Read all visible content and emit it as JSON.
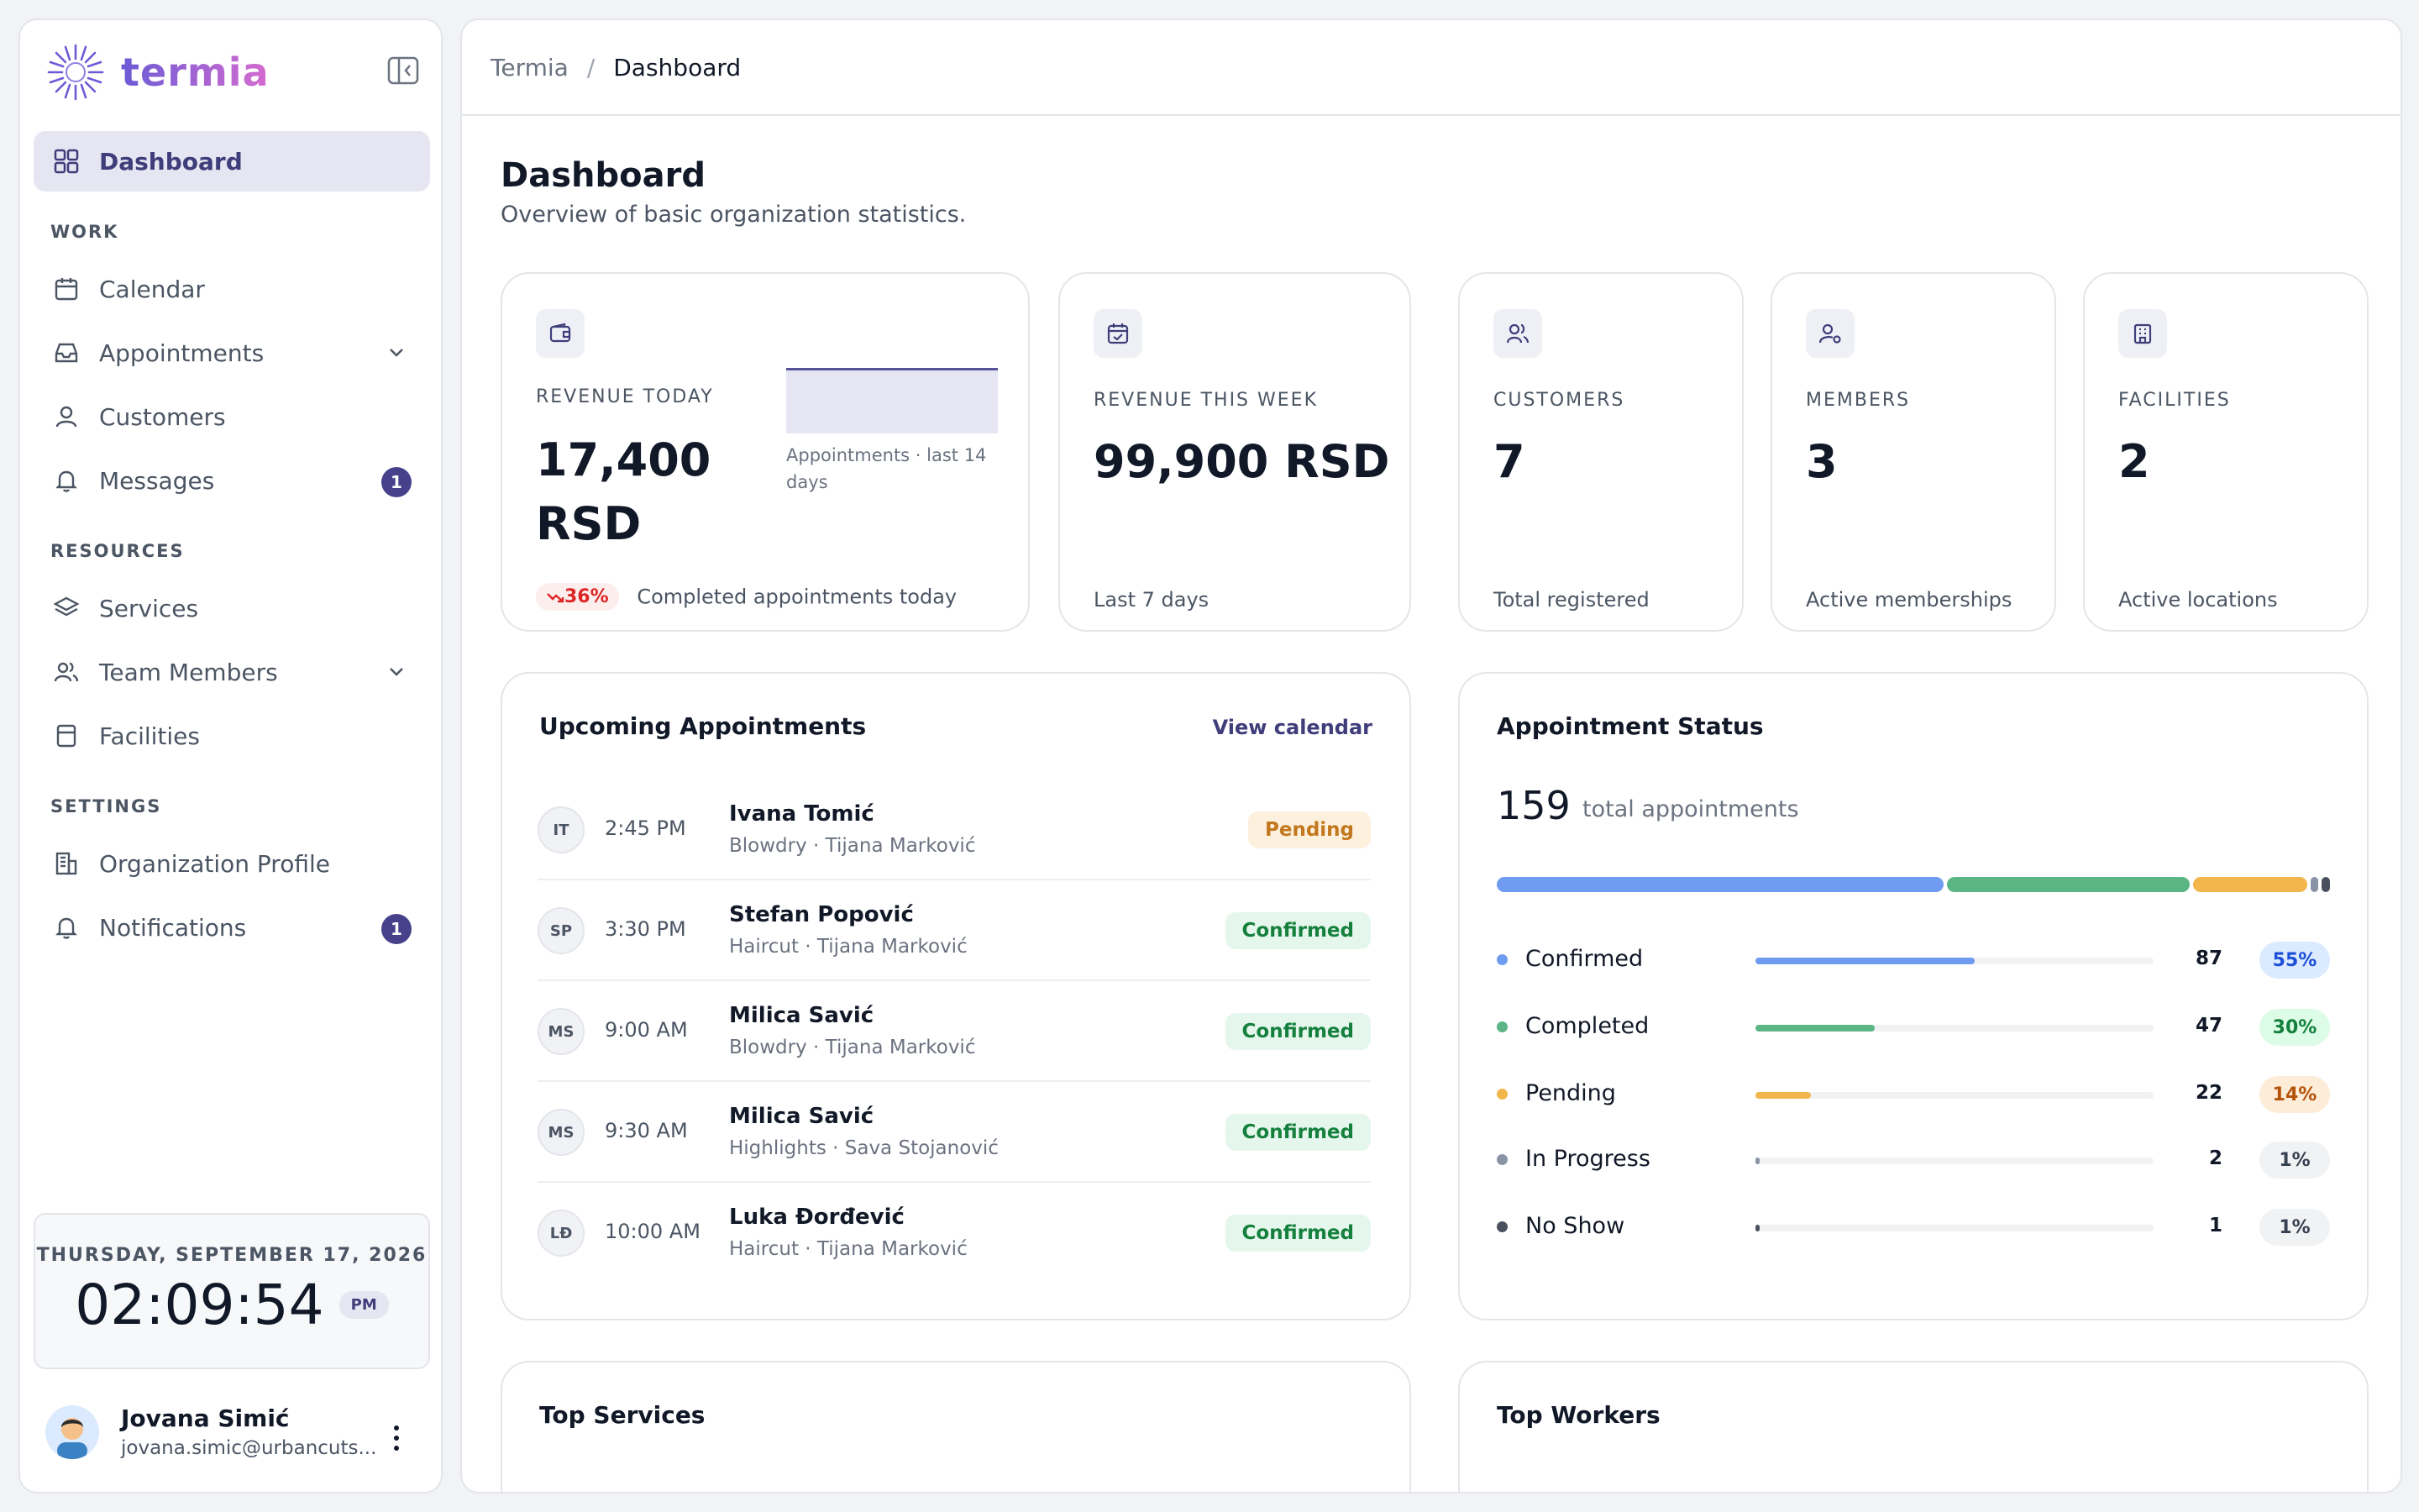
{
  "app": {
    "name": "termia"
  },
  "sidebar": {
    "active": {
      "label": "Dashboard"
    },
    "sections": {
      "work": "WORK",
      "resources": "RESOURCES",
      "settings": "SETTINGS"
    },
    "items": {
      "calendar": "Calendar",
      "appointments": "Appointments",
      "customers": "Customers",
      "messages": "Messages",
      "messages_badge": "1",
      "services": "Services",
      "team_members": "Team Members",
      "facilities": "Facilities",
      "org_profile": "Organization Profile",
      "notifications": "Notifications",
      "notifications_badge": "1"
    },
    "clock": {
      "date": "THURSDAY, SEPTEMBER 17, 2026",
      "time": "02:09:54",
      "ampm": "PM"
    },
    "user": {
      "name": "Jovana Simić",
      "email": "jovana.simic@urbancuts..."
    }
  },
  "breadcrumb": {
    "root": "Termia",
    "separator": "/",
    "current": "Dashboard"
  },
  "page": {
    "title": "Dashboard",
    "subtitle": "Overview of basic organization statistics."
  },
  "stats": {
    "revenue_today": {
      "label": "REVENUE TODAY",
      "value_line1": "17,400",
      "value_line2": "RSD",
      "chart_caption": "Appointments · last 14 days",
      "trend": "36%",
      "foot": "Completed appointments today"
    },
    "revenue_week": {
      "label": "REVENUE THIS WEEK",
      "value": "99,900 RSD",
      "foot": "Last 7 days"
    },
    "customers": {
      "label": "CUSTOMERS",
      "value": "7",
      "foot": "Total registered"
    },
    "members": {
      "label": "MEMBERS",
      "value": "3",
      "foot": "Active memberships"
    },
    "facilities": {
      "label": "FACILITIES",
      "value": "2",
      "foot": "Active locations"
    }
  },
  "upcoming": {
    "title": "Upcoming Appointments",
    "link": "View calendar",
    "rows": [
      {
        "initials": "IT",
        "time": "2:45 PM",
        "name": "Ivana Tomić",
        "detail": "Blowdry · Tijana Marković",
        "status": "Pending"
      },
      {
        "initials": "SP",
        "time": "3:30 PM",
        "name": "Stefan Popović",
        "detail": "Haircut · Tijana Marković",
        "status": "Confirmed"
      },
      {
        "initials": "MS",
        "time": "9:00 AM",
        "name": "Milica Savić",
        "detail": "Blowdry · Tijana Marković",
        "status": "Confirmed"
      },
      {
        "initials": "MS",
        "time": "9:30 AM",
        "name": "Milica Savić",
        "detail": "Highlights · Sava Stojanović",
        "status": "Confirmed"
      },
      {
        "initials": "LĐ",
        "time": "10:00 AM",
        "name": "Luka Đorđević",
        "detail": "Haircut · Tijana Marković",
        "status": "Confirmed"
      }
    ]
  },
  "status_panel": {
    "title": "Appointment Status",
    "total": "159",
    "total_label": "total appointments",
    "rows": [
      {
        "name": "Confirmed",
        "count": "87",
        "pct": "55%",
        "fraction": 0.55,
        "color": "#6f9cf0",
        "pct_bg": "#dbeafe",
        "pct_fg": "#1d4ed8"
      },
      {
        "name": "Completed",
        "count": "47",
        "pct": "30%",
        "fraction": 0.3,
        "color": "#5bb585",
        "pct_bg": "#dcfce7",
        "pct_fg": "#15803d"
      },
      {
        "name": "Pending",
        "count": "22",
        "pct": "14%",
        "fraction": 0.14,
        "color": "#f2b64d",
        "pct_bg": "#fdecd8",
        "pct_fg": "#b45309"
      },
      {
        "name": "In Progress",
        "count": "2",
        "pct": "1%",
        "fraction": 0.01,
        "color": "#8b93a7",
        "pct_bg": "#f1f2f4",
        "pct_fg": "#374151"
      },
      {
        "name": "No Show",
        "count": "1",
        "pct": "1%",
        "fraction": 0.01,
        "color": "#4b5060",
        "pct_bg": "#f1f2f4",
        "pct_fg": "#374151"
      }
    ]
  },
  "bottom": {
    "top_services": "Top Services",
    "top_workers": "Top Workers"
  }
}
